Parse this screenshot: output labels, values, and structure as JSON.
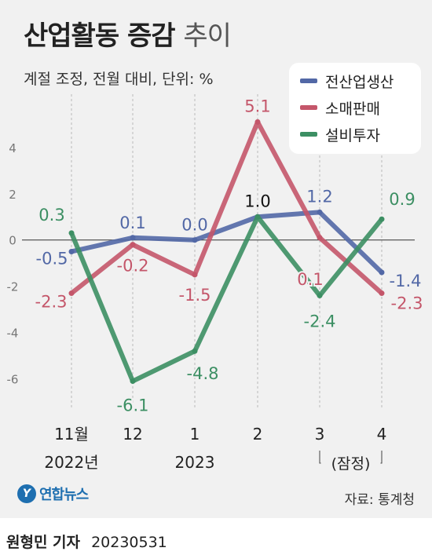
{
  "header": {
    "title_bold": "산업활동 증감",
    "title_light": "추이",
    "subtitle": "계절 조정, 전월 대비, 단위: %"
  },
  "chart_data": {
    "type": "line",
    "categories": [
      "11월",
      "12",
      "1",
      "2",
      "3",
      "4"
    ],
    "year_labels": [
      {
        "text": "2022년",
        "category": "11월"
      },
      {
        "text": "2023",
        "category": "1"
      }
    ],
    "bracket_label": "(잠정)",
    "y_ticks": [
      4,
      2,
      0,
      -2,
      -4,
      -6
    ],
    "ylim": [
      -7.2,
      6.3
    ],
    "series": [
      {
        "name": "전산업생산",
        "color": "#5268a6",
        "values": [
          -0.5,
          0.1,
          0.0,
          1.0,
          1.2,
          -1.4
        ],
        "labels": [
          "-0.5",
          "0.1",
          "0.0",
          "1.0",
          "1.2",
          "-1.4"
        ]
      },
      {
        "name": "소매판매",
        "color": "#c4566a",
        "values": [
          -2.3,
          -0.2,
          -1.5,
          5.1,
          0.1,
          -2.3
        ],
        "labels": [
          "-2.3",
          "-0.2",
          "-1.5",
          "5.1",
          "0.1",
          "-2.3"
        ]
      },
      {
        "name": "설비투자",
        "color": "#3c8f63",
        "values": [
          0.3,
          -6.1,
          -4.8,
          1.0,
          -2.4,
          0.9
        ],
        "labels": [
          "0.3",
          "-6.1",
          "-4.8",
          "",
          "-2.4",
          "0.9"
        ]
      }
    ],
    "gridlines": "vertical-dashed"
  },
  "footer": {
    "logo_mark": "Y",
    "logo_text": "연합뉴스",
    "source": "자료: 통계청",
    "reporter": "원형민 기자",
    "date": "20230531"
  }
}
